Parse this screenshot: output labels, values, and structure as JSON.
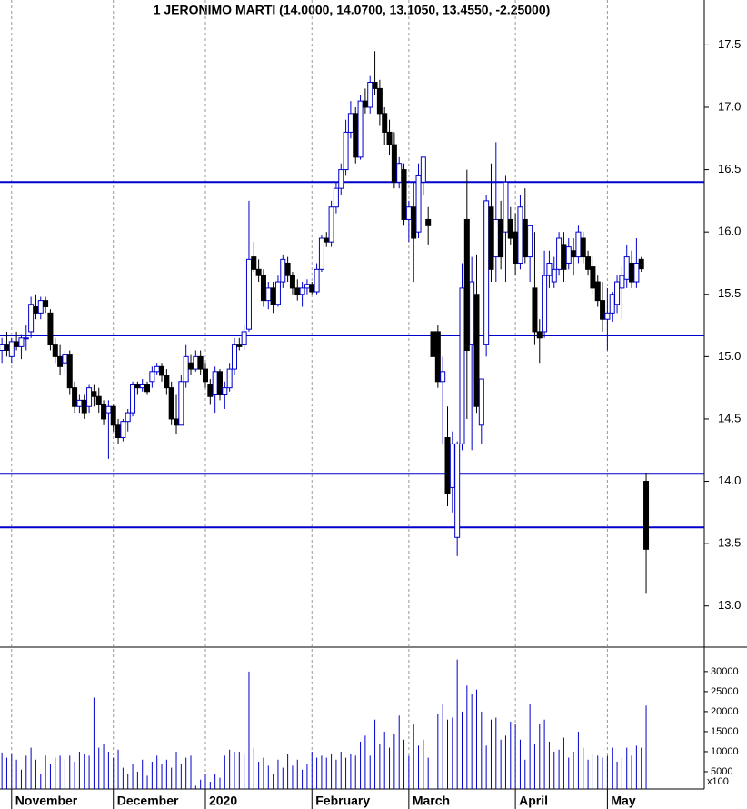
{
  "chart_data": {
    "type": "candlestick",
    "title": "1 JERONIMO MARTI (14.0000, 14.0700, 13.1050, 13.4550, -2.25000)",
    "x": [
      0,
      1,
      2,
      3,
      4,
      5,
      6,
      7,
      8,
      9,
      10,
      11,
      12,
      13,
      14,
      15,
      16,
      17,
      18,
      19,
      20,
      21,
      22,
      23,
      24,
      25,
      26,
      27,
      28,
      29,
      30,
      31,
      32,
      33,
      34,
      35,
      36,
      37,
      38,
      39,
      40,
      41,
      42,
      43,
      44,
      45,
      46,
      47,
      48,
      49,
      50,
      51,
      52,
      53,
      54,
      55,
      56,
      57,
      58,
      59,
      60,
      61,
      62,
      63,
      64,
      65,
      66,
      67,
      68,
      69,
      70,
      71,
      72,
      73,
      74,
      75,
      76,
      77,
      78,
      79,
      80,
      81,
      82,
      83,
      84,
      85,
      86,
      87,
      88,
      89,
      90,
      91,
      92,
      93,
      94,
      95,
      96,
      97,
      98,
      99,
      100,
      101,
      102,
      103,
      104,
      105,
      106,
      107,
      108,
      109,
      110,
      111,
      112,
      113,
      114,
      115,
      116,
      117,
      118,
      119,
      120,
      121,
      122,
      123,
      124,
      125,
      126,
      127,
      128,
      129,
      130,
      131,
      132,
      133
    ],
    "open": [
      15.05,
      15.1,
      15.0,
      15.12,
      15.08,
      15.15,
      15.2,
      15.4,
      15.35,
      15.45,
      15.35,
      15.1,
      15.0,
      14.95,
      15.02,
      14.75,
      14.6,
      14.65,
      14.6,
      14.72,
      14.68,
      14.62,
      14.55,
      14.6,
      14.45,
      14.35,
      14.48,
      14.55,
      14.78,
      14.75,
      14.78,
      14.8,
      14.88,
      14.92,
      14.85,
      14.75,
      14.5,
      14.45,
      14.8,
      14.95,
      14.9,
      15.0,
      14.9,
      14.78,
      14.7,
      14.88,
      14.7,
      14.75,
      14.9,
      15.1,
      15.1,
      15.22,
      15.8,
      15.7,
      15.65,
      15.45,
      15.55,
      15.42,
      15.6,
      15.75,
      15.65,
      15.55,
      15.5,
      15.55,
      15.58,
      15.52,
      15.7,
      15.95,
      15.92,
      16.2,
      16.35,
      16.5,
      16.8,
      16.95,
      16.6,
      17.05,
      17.0,
      17.2,
      17.15,
      16.95,
      16.8,
      16.7,
      16.4,
      16.5,
      16.1,
      16.2,
      16.0,
      16.4,
      16.1,
      15.2,
      15.2,
      14.8,
      14.35,
      13.95,
      13.55,
      14.3,
      16.1,
      15.1,
      15.5,
      14.45,
      15.1,
      16.2,
      15.8,
      16.1,
      16.0,
      16.1,
      16.0,
      15.75,
      16.1,
      15.8,
      15.55,
      15.2,
      15.2,
      15.65,
      15.6,
      15.7,
      15.9,
      15.75,
      15.85,
      15.8,
      15.95,
      15.8,
      15.72,
      15.6,
      15.45,
      15.3,
      15.35,
      15.42,
      15.55,
      15.62,
      15.75,
      15.6,
      15.78,
      14.0
    ],
    "high": [
      15.15,
      15.2,
      15.15,
      15.2,
      15.18,
      15.25,
      15.48,
      15.5,
      15.48,
      15.48,
      15.38,
      15.15,
      15.1,
      15.05,
      15.05,
      14.8,
      14.7,
      14.7,
      14.78,
      14.78,
      14.75,
      14.65,
      14.65,
      14.62,
      14.5,
      14.5,
      14.58,
      14.8,
      14.8,
      14.82,
      14.8,
      14.92,
      14.95,
      14.95,
      14.9,
      14.8,
      14.7,
      14.85,
      15.1,
      15.02,
      15.05,
      15.05,
      14.95,
      14.82,
      14.92,
      14.9,
      14.8,
      14.95,
      15.15,
      15.15,
      15.25,
      16.25,
      15.92,
      15.78,
      15.7,
      15.6,
      15.6,
      15.65,
      15.82,
      15.8,
      15.68,
      15.62,
      15.6,
      15.62,
      15.6,
      15.75,
      15.98,
      16.0,
      16.25,
      16.4,
      16.55,
      16.9,
      17.05,
      17.0,
      17.1,
      17.15,
      17.25,
      17.45,
      17.22,
      17.0,
      16.9,
      16.8,
      16.6,
      16.55,
      16.25,
      16.4,
      16.55,
      16.6,
      16.2,
      15.45,
      15.25,
      15.0,
      14.6,
      14.4,
      14.32,
      15.75,
      16.5,
      15.8,
      15.82,
      14.8,
      16.3,
      16.55,
      16.72,
      16.25,
      16.45,
      16.2,
      16.15,
      16.3,
      16.35,
      16.05,
      16.0,
      15.3,
      15.85,
      15.85,
      15.8,
      16.0,
      16.0,
      15.95,
      15.95,
      16.05,
      16.0,
      15.85,
      15.8,
      15.65,
      15.6,
      15.55,
      15.52,
      15.65,
      15.72,
      15.9,
      15.85,
      15.95,
      15.8,
      14.07
    ],
    "low": [
      14.95,
      15.0,
      14.95,
      15.05,
      14.98,
      15.05,
      15.15,
      15.3,
      15.3,
      15.35,
      15.05,
      14.95,
      14.85,
      14.85,
      14.7,
      14.55,
      14.55,
      14.5,
      14.55,
      14.6,
      14.55,
      14.45,
      14.18,
      14.4,
      14.3,
      14.32,
      14.4,
      14.52,
      14.7,
      14.72,
      14.7,
      14.75,
      14.85,
      14.8,
      14.7,
      14.45,
      14.38,
      14.45,
      14.75,
      14.85,
      14.88,
      14.85,
      14.75,
      14.62,
      14.55,
      14.65,
      14.58,
      14.72,
      14.85,
      15.05,
      15.05,
      15.2,
      15.68,
      15.6,
      15.4,
      15.38,
      15.35,
      15.4,
      15.55,
      15.6,
      15.5,
      15.45,
      15.4,
      15.5,
      15.5,
      15.5,
      15.68,
      15.88,
      15.88,
      16.15,
      16.3,
      16.45,
      16.75,
      16.55,
      16.58,
      16.95,
      16.95,
      17.1,
      16.85,
      16.7,
      16.62,
      16.35,
      16.35,
      16.05,
      15.92,
      15.6,
      15.95,
      16.3,
      15.9,
      14.85,
      14.75,
      14.3,
      13.8,
      13.75,
      13.4,
      14.25,
      14.5,
      14.25,
      14.55,
      14.3,
      15.0,
      15.6,
      15.6,
      15.7,
      15.6,
      15.9,
      15.65,
      15.7,
      15.75,
      15.6,
      15.1,
      14.95,
      15.15,
      15.55,
      15.55,
      15.65,
      15.6,
      15.7,
      15.65,
      15.75,
      15.75,
      15.65,
      15.5,
      15.4,
      15.2,
      15.05,
      15.28,
      15.35,
      15.3,
      15.55,
      15.55,
      15.55,
      15.68,
      13.105
    ],
    "close": [
      15.1,
      15.05,
      15.12,
      15.08,
      15.15,
      15.15,
      15.42,
      15.35,
      15.45,
      15.4,
      15.1,
      15.0,
      14.92,
      15.02,
      14.75,
      14.6,
      14.65,
      14.55,
      14.75,
      14.68,
      14.62,
      14.5,
      14.6,
      14.45,
      14.35,
      14.48,
      14.55,
      14.78,
      14.75,
      14.78,
      14.72,
      14.88,
      14.92,
      14.85,
      14.75,
      14.5,
      14.45,
      14.8,
      15.0,
      14.9,
      15.0,
      14.9,
      14.8,
      14.68,
      14.88,
      14.7,
      14.75,
      14.9,
      15.1,
      15.08,
      15.2,
      15.78,
      15.7,
      15.65,
      15.45,
      15.55,
      15.42,
      15.6,
      15.78,
      15.65,
      15.55,
      15.5,
      15.55,
      15.58,
      15.52,
      15.7,
      15.95,
      15.92,
      16.2,
      16.35,
      16.5,
      16.8,
      16.95,
      16.6,
      17.05,
      17.0,
      17.2,
      17.15,
      16.95,
      16.8,
      16.7,
      16.4,
      16.55,
      16.1,
      16.2,
      15.95,
      16.45,
      16.6,
      16.05,
      15.0,
      14.8,
      14.88,
      13.9,
      14.3,
      14.3,
      15.55,
      15.05,
      15.6,
      14.6,
      14.82,
      16.25,
      15.7,
      16.1,
      15.8,
      16.4,
      15.95,
      15.75,
      16.2,
      15.8,
      16.05,
      15.2,
      15.15,
      15.65,
      15.75,
      15.7,
      15.95,
      15.7,
      15.88,
      15.8,
      16.0,
      15.8,
      15.7,
      15.55,
      15.45,
      15.3,
      15.35,
      15.5,
      15.6,
      15.65,
      15.8,
      15.6,
      15.75,
      15.705,
      13.455
    ],
    "volume": [
      9800,
      8500,
      9500,
      8000,
      5500,
      9000,
      11000,
      8000,
      4500,
      9000,
      7000,
      8500,
      9000,
      8000,
      9000,
      7500,
      10000,
      9500,
      9000,
      23500,
      11000,
      12000,
      10000,
      8500,
      10500,
      6000,
      4500,
      7000,
      5000,
      8000,
      4000,
      7500,
      9000,
      7000,
      8000,
      6000,
      10000,
      7000,
      8500,
      9000,
      1500,
      3000,
      4500,
      2500,
      4500,
      3500,
      9000,
      10500,
      10000,
      10000,
      9500,
      30000,
      11000,
      7500,
      8500,
      6500,
      4500,
      8000,
      6000,
      9500,
      6500,
      8000,
      5500,
      7000,
      10000,
      8500,
      9000,
      8500,
      9500,
      8000,
      10000,
      8500,
      9500,
      9000,
      12500,
      14000,
      9000,
      18000,
      12000,
      15000,
      11000,
      14500,
      19000,
      13000,
      9000,
      17000,
      11500,
      13000,
      8500,
      15500,
      19500,
      22000,
      18000,
      18500,
      33000,
      20000,
      26500,
      24500,
      25500,
      20000,
      11500,
      18000,
      18500,
      13000,
      14000,
      17500,
      17000,
      13000,
      8000,
      22000,
      12000,
      17000,
      18000,
      12500,
      10000,
      10500,
      13500,
      8500,
      10000,
      15000,
      11000,
      8000,
      9500,
      9000,
      8500,
      9000,
      11000,
      7500,
      8500,
      11000,
      9000,
      11500,
      11000,
      21500
    ],
    "up_color": "#0000cc",
    "down_color": "#000000",
    "xlim": [
      -0.4,
      145
    ],
    "xticks": [
      {
        "value": 2,
        "label": "November"
      },
      {
        "value": 23,
        "label": "December"
      },
      {
        "value": 42,
        "label": "2020"
      },
      {
        "value": 64,
        "label": "February"
      },
      {
        "value": 84,
        "label": "March"
      },
      {
        "value": 106,
        "label": "April"
      },
      {
        "value": 125,
        "label": "May"
      }
    ],
    "ylim": [
      12.67,
      17.86
    ],
    "yticks": [
      {
        "value": 13,
        "label": "13.0"
      },
      13.5,
      {
        "value": 14,
        "label": "14.0"
      },
      14.5,
      {
        "value": 15,
        "label": "15.0"
      },
      15.5,
      {
        "value": 16,
        "label": "16.0"
      },
      16.5,
      {
        "value": 17,
        "label": "17.0"
      },
      17.5
    ],
    "hlines": [
      16.4,
      15.17,
      14.06,
      13.63
    ],
    "hline_color": "#0000cc",
    "volume_ylim": [
      0,
      36100
    ],
    "volume_yticks": [
      5000,
      10000,
      15000,
      20000,
      25000,
      30000
    ],
    "volume_unit_label": "x100",
    "volume_color": "#0000cc"
  }
}
